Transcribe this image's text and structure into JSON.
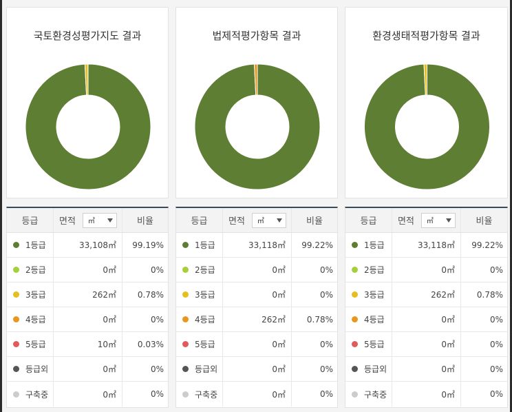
{
  "colors": {
    "grade1": "#5e7e34",
    "grade2": "#a5cf3b",
    "grade3": "#e6be1e",
    "grade4": "#e8961e",
    "grade5": "#e25a5a",
    "outside": "#555555",
    "construction": "#cccccc"
  },
  "panels": [
    {
      "title": "국토환경성평가지도 결과",
      "headers": {
        "grade": "등급",
        "area": "면적",
        "unit": "㎡",
        "ratio": "비율"
      },
      "rows": [
        {
          "label": "1등급",
          "area": "33,108㎡",
          "ratio": "99.19%",
          "color_key": "grade1"
        },
        {
          "label": "2등급",
          "area": "0㎡",
          "ratio": "0%",
          "color_key": "grade2"
        },
        {
          "label": "3등급",
          "area": "262㎡",
          "ratio": "0.78%",
          "color_key": "grade3"
        },
        {
          "label": "4등급",
          "area": "0㎡",
          "ratio": "0%",
          "color_key": "grade4"
        },
        {
          "label": "5등급",
          "area": "10㎡",
          "ratio": "0.03%",
          "color_key": "grade5"
        },
        {
          "label": "등급외",
          "area": "0㎡",
          "ratio": "0%",
          "color_key": "outside"
        },
        {
          "label": "구축중",
          "area": "0㎡",
          "ratio": "0%",
          "color_key": "construction"
        }
      ],
      "chart_data": {
        "type": "pie",
        "values": [
          99.19,
          0,
          0.78,
          0,
          0.03,
          0,
          0
        ]
      }
    },
    {
      "title": "법제적평가항목 결과",
      "headers": {
        "grade": "등급",
        "area": "면적",
        "unit": "㎡",
        "ratio": "비율"
      },
      "rows": [
        {
          "label": "1등급",
          "area": "33,118㎡",
          "ratio": "99.22%",
          "color_key": "grade1"
        },
        {
          "label": "2등급",
          "area": "0㎡",
          "ratio": "0%",
          "color_key": "grade2"
        },
        {
          "label": "3등급",
          "area": "0㎡",
          "ratio": "0%",
          "color_key": "grade3"
        },
        {
          "label": "4등급",
          "area": "262㎡",
          "ratio": "0.78%",
          "color_key": "grade4"
        },
        {
          "label": "5등급",
          "area": "0㎡",
          "ratio": "0%",
          "color_key": "grade5"
        },
        {
          "label": "등급외",
          "area": "0㎡",
          "ratio": "0%",
          "color_key": "outside"
        },
        {
          "label": "구축중",
          "area": "0㎡",
          "ratio": "0%",
          "color_key": "construction"
        }
      ],
      "chart_data": {
        "type": "pie",
        "values": [
          99.22,
          0,
          0,
          0.78,
          0,
          0,
          0
        ]
      }
    },
    {
      "title": "환경생태적평가항목 결과",
      "headers": {
        "grade": "등급",
        "area": "면적",
        "unit": "㎡",
        "ratio": "비율"
      },
      "rows": [
        {
          "label": "1등급",
          "area": "33,118㎡",
          "ratio": "99.22%",
          "color_key": "grade1"
        },
        {
          "label": "2등급",
          "area": "0㎡",
          "ratio": "0%",
          "color_key": "grade2"
        },
        {
          "label": "3등급",
          "area": "262㎡",
          "ratio": "0.78%",
          "color_key": "grade3"
        },
        {
          "label": "4등급",
          "area": "0㎡",
          "ratio": "0%",
          "color_key": "grade4"
        },
        {
          "label": "5등급",
          "area": "0㎡",
          "ratio": "0%",
          "color_key": "grade5"
        },
        {
          "label": "등급외",
          "area": "0㎡",
          "ratio": "0%",
          "color_key": "outside"
        },
        {
          "label": "구축중",
          "area": "0㎡",
          "ratio": "0%",
          "color_key": "construction"
        }
      ],
      "chart_data": {
        "type": "pie",
        "values": [
          99.22,
          0,
          0.78,
          0,
          0,
          0,
          0
        ]
      }
    }
  ]
}
